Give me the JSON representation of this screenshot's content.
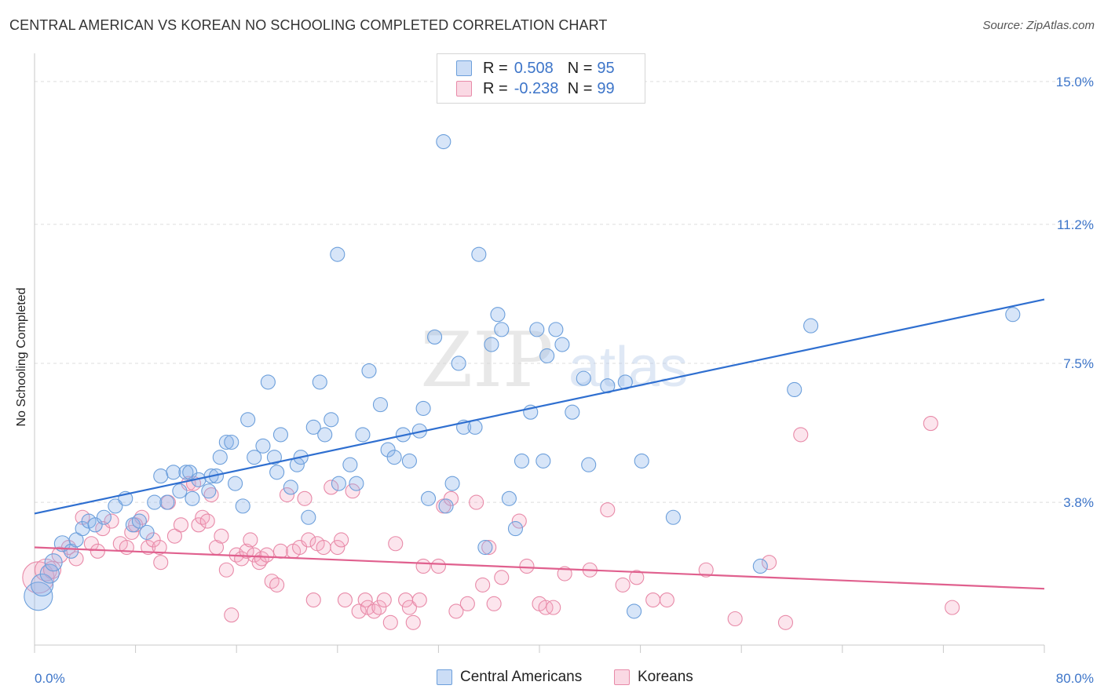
{
  "title": "CENTRAL AMERICAN VS KOREAN NO SCHOOLING COMPLETED CORRELATION CHART",
  "source": "Source: ZipAtlas.com",
  "watermark": "ZIPatlas",
  "legend": {
    "r_label": "R =",
    "n_label": "N =",
    "rows": [
      {
        "r": "0.508",
        "n": "95"
      },
      {
        "r": "-0.238",
        "n": "99"
      }
    ]
  },
  "chart_data": {
    "type": "scatter",
    "title": "CENTRAL AMERICAN VS KOREAN NO SCHOOLING COMPLETED CORRELATION CHART",
    "xlabel": "",
    "ylabel": "No Schooling Completed",
    "xlim": [
      0,
      80
    ],
    "ylim": [
      0,
      15.5
    ],
    "x_tick_labels": [
      "0.0%",
      "80.0%"
    ],
    "y_ticks": [
      3.8,
      7.5,
      11.2,
      15.0
    ],
    "y_tick_labels": [
      "3.8%",
      "7.5%",
      "11.2%",
      "15.0%"
    ],
    "grid": "horizontal dashed",
    "legend_position": "top-center",
    "colors": {
      "central": "#6c9fdb",
      "central_fill": "rgba(140,180,235,0.35)",
      "central_line": "#2f6fd0",
      "korean": "#e88aa8",
      "korean_fill": "rgba(244,170,195,0.30)",
      "korean_line": "#e0608e"
    },
    "series": [
      {
        "name": "Central Americans",
        "r": 0.508,
        "n": 95,
        "trend": {
          "x": [
            0,
            80
          ],
          "y": [
            3.5,
            9.2
          ]
        },
        "points": [
          [
            0.3,
            1.3,
            18
          ],
          [
            0.6,
            1.6,
            14
          ],
          [
            1.2,
            1.9,
            12
          ],
          [
            1.5,
            2.2,
            11
          ],
          [
            2.2,
            2.7,
            10
          ],
          [
            2.9,
            2.5,
            9
          ],
          [
            3.3,
            2.8,
            9
          ],
          [
            3.8,
            3.1,
            9
          ],
          [
            4.3,
            3.3,
            9
          ],
          [
            4.8,
            3.2,
            9
          ],
          [
            5.5,
            3.4,
            9
          ],
          [
            6.4,
            3.7,
            9
          ],
          [
            7.2,
            3.9,
            9
          ],
          [
            7.8,
            3.2,
            9
          ],
          [
            8.3,
            3.3,
            9
          ],
          [
            8.9,
            3.0,
            9
          ],
          [
            9.5,
            3.8,
            9
          ],
          [
            10.0,
            4.5,
            9
          ],
          [
            10.5,
            3.8,
            9
          ],
          [
            11.0,
            4.6,
            9
          ],
          [
            11.5,
            4.1,
            9
          ],
          [
            12.0,
            4.6,
            9
          ],
          [
            12.3,
            4.6,
            9
          ],
          [
            12.5,
            3.9,
            9
          ],
          [
            13.0,
            4.4,
            9
          ],
          [
            13.8,
            4.1,
            9
          ],
          [
            14.0,
            4.5,
            9
          ],
          [
            14.4,
            4.5,
            9
          ],
          [
            14.7,
            5.0,
            9
          ],
          [
            15.2,
            5.4,
            9
          ],
          [
            15.6,
            5.4,
            9
          ],
          [
            15.9,
            4.3,
            9
          ],
          [
            16.5,
            3.7,
            9
          ],
          [
            16.9,
            6.0,
            9
          ],
          [
            17.4,
            5.0,
            9
          ],
          [
            18.1,
            5.3,
            9
          ],
          [
            18.5,
            7.0,
            9
          ],
          [
            19.0,
            5.0,
            9
          ],
          [
            19.2,
            4.6,
            9
          ],
          [
            19.5,
            5.6,
            9
          ],
          [
            20.3,
            4.2,
            9
          ],
          [
            20.8,
            4.8,
            9
          ],
          [
            21.1,
            5.0,
            9
          ],
          [
            21.7,
            3.4,
            9
          ],
          [
            22.1,
            5.8,
            9
          ],
          [
            22.6,
            7.0,
            9
          ],
          [
            23.0,
            5.6,
            9
          ],
          [
            23.5,
            6.0,
            9
          ],
          [
            24.0,
            10.4,
            9
          ],
          [
            24.1,
            4.3,
            9
          ],
          [
            25.0,
            4.8,
            9
          ],
          [
            25.5,
            4.3,
            9
          ],
          [
            26.0,
            5.6,
            9
          ],
          [
            26.5,
            7.3,
            9
          ],
          [
            27.4,
            6.4,
            9
          ],
          [
            28.0,
            5.2,
            9
          ],
          [
            28.5,
            5.0,
            9
          ],
          [
            29.2,
            5.6,
            9
          ],
          [
            29.7,
            4.9,
            9
          ],
          [
            30.5,
            5.7,
            9
          ],
          [
            30.8,
            6.3,
            9
          ],
          [
            31.2,
            3.9,
            9
          ],
          [
            31.7,
            8.2,
            9
          ],
          [
            32.4,
            13.4,
            9
          ],
          [
            32.6,
            3.7,
            9
          ],
          [
            33.1,
            4.3,
            9
          ],
          [
            33.6,
            7.5,
            9
          ],
          [
            34.0,
            5.8,
            9
          ],
          [
            34.9,
            5.8,
            9
          ],
          [
            35.2,
            10.4,
            9
          ],
          [
            35.7,
            2.6,
            9
          ],
          [
            36.2,
            8.0,
            9
          ],
          [
            36.7,
            8.8,
            9
          ],
          [
            37.0,
            8.4,
            9
          ],
          [
            37.6,
            3.9,
            9
          ],
          [
            38.1,
            3.1,
            9
          ],
          [
            38.6,
            4.9,
            9
          ],
          [
            39.3,
            6.2,
            9
          ],
          [
            39.8,
            8.4,
            9
          ],
          [
            40.3,
            4.9,
            9
          ],
          [
            40.6,
            7.7,
            9
          ],
          [
            41.3,
            8.4,
            9
          ],
          [
            41.8,
            8.0,
            9
          ],
          [
            42.6,
            6.2,
            9
          ],
          [
            43.5,
            7.1,
            9
          ],
          [
            43.9,
            4.8,
            9
          ],
          [
            45.4,
            6.9,
            9
          ],
          [
            46.8,
            7.0,
            9
          ],
          [
            47.5,
            0.9,
            9
          ],
          [
            48.1,
            4.9,
            9
          ],
          [
            50.6,
            3.4,
            9
          ],
          [
            57.5,
            2.1,
            9
          ],
          [
            60.2,
            6.8,
            9
          ],
          [
            61.5,
            8.5,
            9
          ],
          [
            77.5,
            8.8,
            9
          ]
        ]
      },
      {
        "name": "Koreans",
        "r": -0.238,
        "n": 99,
        "trend": {
          "x": [
            0,
            80
          ],
          "y": [
            2.6,
            1.5
          ]
        },
        "points": [
          [
            0.3,
            1.8,
            20
          ],
          [
            0.9,
            2.0,
            14
          ],
          [
            1.4,
            2.0,
            11
          ],
          [
            2.0,
            2.4,
            10
          ],
          [
            2.7,
            2.6,
            9
          ],
          [
            3.3,
            2.3,
            9
          ],
          [
            3.8,
            3.4,
            9
          ],
          [
            4.5,
            2.7,
            9
          ],
          [
            5.0,
            2.5,
            9
          ],
          [
            5.4,
            3.1,
            9
          ],
          [
            6.1,
            3.3,
            9
          ],
          [
            6.8,
            2.7,
            9
          ],
          [
            7.3,
            2.6,
            9
          ],
          [
            7.7,
            3.0,
            9
          ],
          [
            8.0,
            3.2,
            9
          ],
          [
            8.5,
            3.4,
            9
          ],
          [
            9.0,
            2.6,
            9
          ],
          [
            9.4,
            2.8,
            9
          ],
          [
            9.9,
            2.6,
            9
          ],
          [
            10.0,
            2.2,
            9
          ],
          [
            10.6,
            3.8,
            9
          ],
          [
            11.1,
            2.9,
            9
          ],
          [
            11.6,
            3.2,
            9
          ],
          [
            12.2,
            4.3,
            9
          ],
          [
            12.6,
            4.3,
            9
          ],
          [
            13.0,
            3.2,
            9
          ],
          [
            13.3,
            3.4,
            9
          ],
          [
            13.7,
            3.3,
            9
          ],
          [
            14.0,
            4.0,
            9
          ],
          [
            14.4,
            2.6,
            9
          ],
          [
            14.8,
            2.9,
            9
          ],
          [
            15.2,
            2.0,
            9
          ],
          [
            15.6,
            0.8,
            9
          ],
          [
            16.0,
            2.4,
            9
          ],
          [
            16.4,
            2.3,
            9
          ],
          [
            16.8,
            2.5,
            9
          ],
          [
            17.1,
            2.8,
            9
          ],
          [
            17.4,
            2.4,
            9
          ],
          [
            17.8,
            2.2,
            9
          ],
          [
            18.0,
            2.3,
            9
          ],
          [
            18.4,
            2.4,
            9
          ],
          [
            18.8,
            1.7,
            9
          ],
          [
            19.2,
            1.6,
            9
          ],
          [
            19.5,
            2.5,
            9
          ],
          [
            20.0,
            4.0,
            9
          ],
          [
            20.5,
            2.5,
            9
          ],
          [
            21.0,
            2.6,
            9
          ],
          [
            21.4,
            3.9,
            9
          ],
          [
            21.7,
            2.8,
            9
          ],
          [
            22.1,
            1.2,
            9
          ],
          [
            22.4,
            2.7,
            9
          ],
          [
            22.9,
            2.6,
            9
          ],
          [
            23.5,
            4.2,
            9
          ],
          [
            24.0,
            2.6,
            9
          ],
          [
            24.3,
            2.8,
            9
          ],
          [
            24.6,
            1.2,
            9
          ],
          [
            25.2,
            4.1,
            9
          ],
          [
            25.7,
            0.9,
            9
          ],
          [
            26.2,
            1.2,
            9
          ],
          [
            26.4,
            1.0,
            9
          ],
          [
            26.9,
            0.9,
            9
          ],
          [
            27.3,
            1.0,
            9
          ],
          [
            27.7,
            1.2,
            9
          ],
          [
            28.2,
            0.6,
            9
          ],
          [
            28.6,
            2.7,
            9
          ],
          [
            29.4,
            1.2,
            9
          ],
          [
            29.7,
            1.0,
            9
          ],
          [
            30.0,
            0.6,
            9
          ],
          [
            30.5,
            1.2,
            9
          ],
          [
            30.8,
            2.1,
            9
          ],
          [
            32.0,
            2.1,
            9
          ],
          [
            32.4,
            3.7,
            9
          ],
          [
            33.0,
            3.9,
            9
          ],
          [
            33.4,
            0.9,
            9
          ],
          [
            34.3,
            1.1,
            9
          ],
          [
            35.0,
            3.8,
            9
          ],
          [
            35.5,
            1.6,
            9
          ],
          [
            36.0,
            2.6,
            9
          ],
          [
            36.4,
            1.1,
            9
          ],
          [
            37.0,
            1.8,
            9
          ],
          [
            38.4,
            3.3,
            9
          ],
          [
            39.0,
            2.1,
            9
          ],
          [
            40.0,
            1.1,
            9
          ],
          [
            40.5,
            1.0,
            9
          ],
          [
            41.1,
            1.0,
            9
          ],
          [
            42.0,
            1.9,
            9
          ],
          [
            44.0,
            2.0,
            9
          ],
          [
            45.4,
            3.6,
            9
          ],
          [
            46.6,
            1.6,
            9
          ],
          [
            47.7,
            1.8,
            9
          ],
          [
            49.0,
            1.2,
            9
          ],
          [
            50.1,
            1.2,
            9
          ],
          [
            53.2,
            2.0,
            9
          ],
          [
            55.5,
            0.7,
            9
          ],
          [
            58.2,
            2.2,
            9
          ],
          [
            59.5,
            0.6,
            9
          ],
          [
            60.7,
            5.6,
            9
          ],
          [
            71.0,
            5.9,
            9
          ],
          [
            72.7,
            1.0,
            9
          ]
        ]
      }
    ]
  },
  "bottom_legend": [
    "Central Americans",
    "Koreans"
  ]
}
